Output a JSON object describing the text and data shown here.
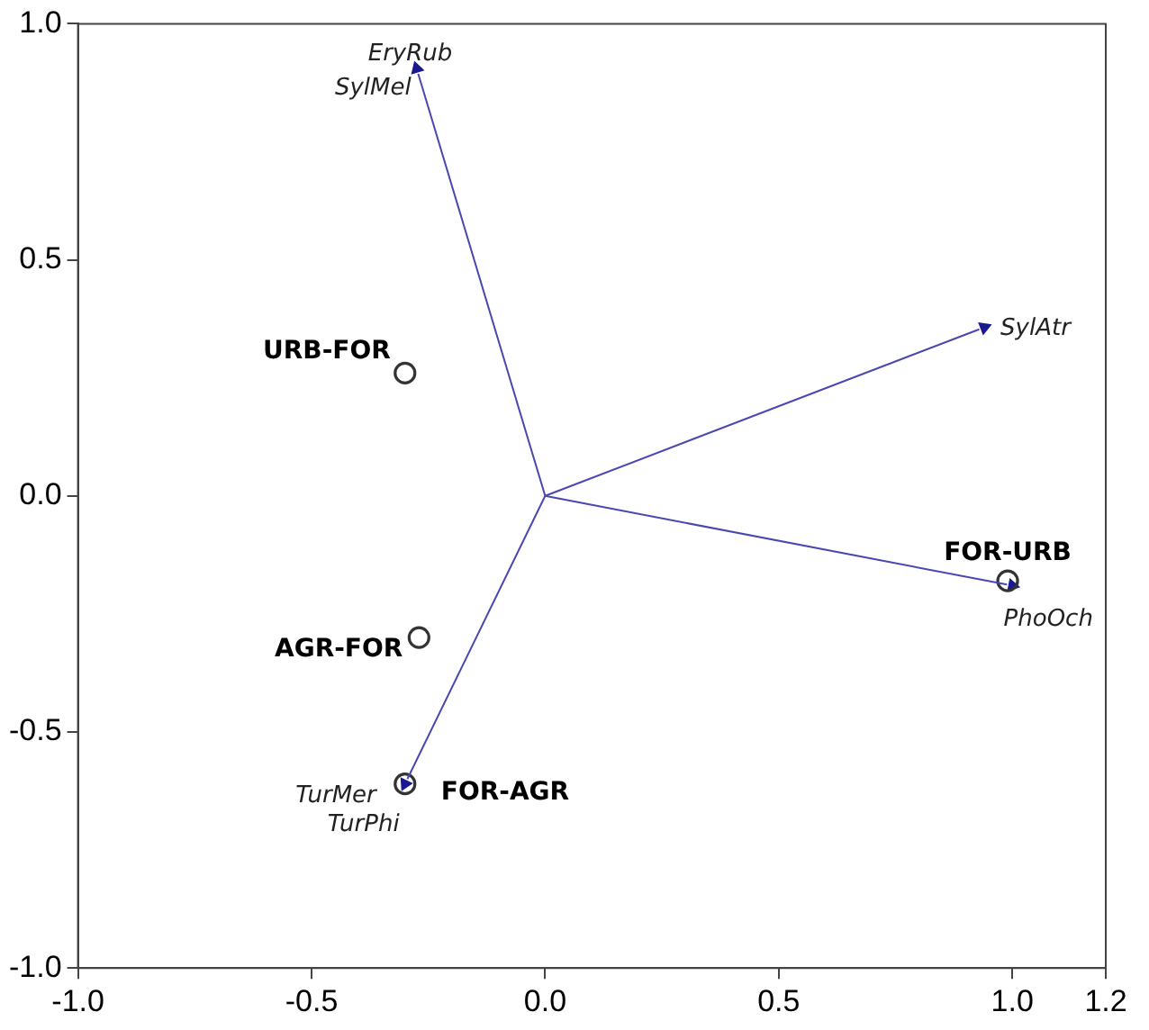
{
  "chart_data": {
    "type": "scatter",
    "xlim": [
      -1.0,
      1.2
    ],
    "ylim": [
      -1.0,
      1.0
    ],
    "xticks": [
      {
        "value": -1,
        "label": "-1.0"
      },
      -0.5,
      {
        "value": 0,
        "label": "0.0"
      },
      0.5,
      {
        "value": 1,
        "label": "1.0"
      },
      1.2
    ],
    "yticks": [
      {
        "value": -1,
        "label": "-1.0"
      },
      -0.5,
      {
        "value": 0,
        "label": "0.0"
      },
      0.5,
      {
        "value": 1,
        "label": "1.0"
      }
    ],
    "marker": "circle",
    "series": [
      {
        "type": "scatter",
        "name": "URB-FOR",
        "color": "#333333",
        "x": [
          -0.3
        ],
        "values": [
          0.26
        ]
      },
      {
        "type": "scatter",
        "name": "AGR-FOR",
        "color": "#333333",
        "x": [
          -0.27
        ],
        "values": [
          -0.3
        ]
      },
      {
        "type": "scatter",
        "name": "FOR-AGR",
        "color": "#333333",
        "x": [
          -0.3
        ],
        "values": [
          -0.61
        ]
      },
      {
        "type": "scatter",
        "name": "FOR-URB",
        "color": "#333333",
        "x": [
          0.99
        ],
        "values": [
          -0.18
        ]
      },
      {
        "type": "scatter",
        "marker": "triangle",
        "color": "#1a1a90",
        "x": [
          -0.275,
          0.94,
          1.0,
          -0.3
        ],
        "values": [
          0.905,
          0.357,
          -0.19,
          -0.61
        ]
      }
    ],
    "annotations": [
      {
        "text": "EryRub",
        "x": -0.275,
        "y": 0.905
      },
      {
        "text": "SylMel",
        "x": -0.275,
        "y": 0.905
      },
      {
        "text": "SylAtr",
        "x": 0.94,
        "y": 0.357
      },
      {
        "text": "PhoOch",
        "x": 1.0,
        "y": -0.19
      },
      {
        "text": "TurMer",
        "x": -0.3,
        "y": -0.61
      },
      {
        "text": "TurPhi",
        "x": -0.3,
        "y": -0.61
      }
    ]
  }
}
